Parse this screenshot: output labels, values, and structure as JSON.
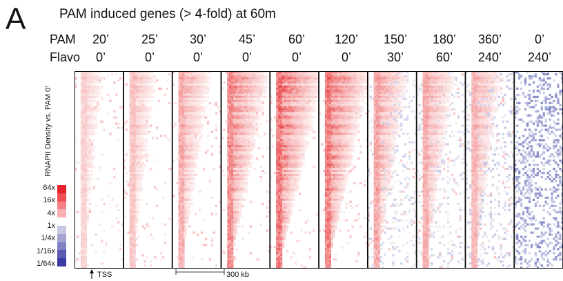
{
  "panel": "A",
  "title": "PAM induced genes (> 4-fold) at 60m",
  "row_labels": {
    "pam": "PAM",
    "flavo": "Flavo"
  },
  "pam_times": [
    "20’",
    "25’",
    "30’",
    "45’",
    "60’",
    "120’",
    "150’",
    "180’",
    "360’",
    "0’"
  ],
  "flavo_times": [
    "0’",
    "0’",
    "0’",
    "0’",
    "0’",
    "0’",
    "30’",
    "60’",
    "240’",
    "240’"
  ],
  "y_axis_label": "RNAPII Density vs. PAM 0’",
  "legend": {
    "labels": [
      "64x",
      "16x",
      "4x",
      "1x",
      "1/4x",
      "1/16x",
      "1/64x"
    ],
    "colors": [
      "#e8202a",
      "#ee4f55",
      "#f48085",
      "#f8b2b5",
      "#ffffff",
      "#c7c7e3",
      "#a4a4d2",
      "#8080c2",
      "#5a5ab2",
      "#3a3aa4"
    ]
  },
  "annotations": {
    "tss": "TSS",
    "scale": "300 kb"
  },
  "colors": {
    "up": "#e41a1c",
    "down": "#2b36a0"
  },
  "panel_intensity": [
    0.35,
    0.45,
    0.6,
    0.85,
    1.0,
    0.95,
    0.65,
    0.6,
    0.55,
    0.15
  ],
  "panel_blue": [
    0.05,
    0.05,
    0.05,
    0.05,
    0.05,
    0.05,
    0.25,
    0.25,
    0.3,
    0.6
  ]
}
